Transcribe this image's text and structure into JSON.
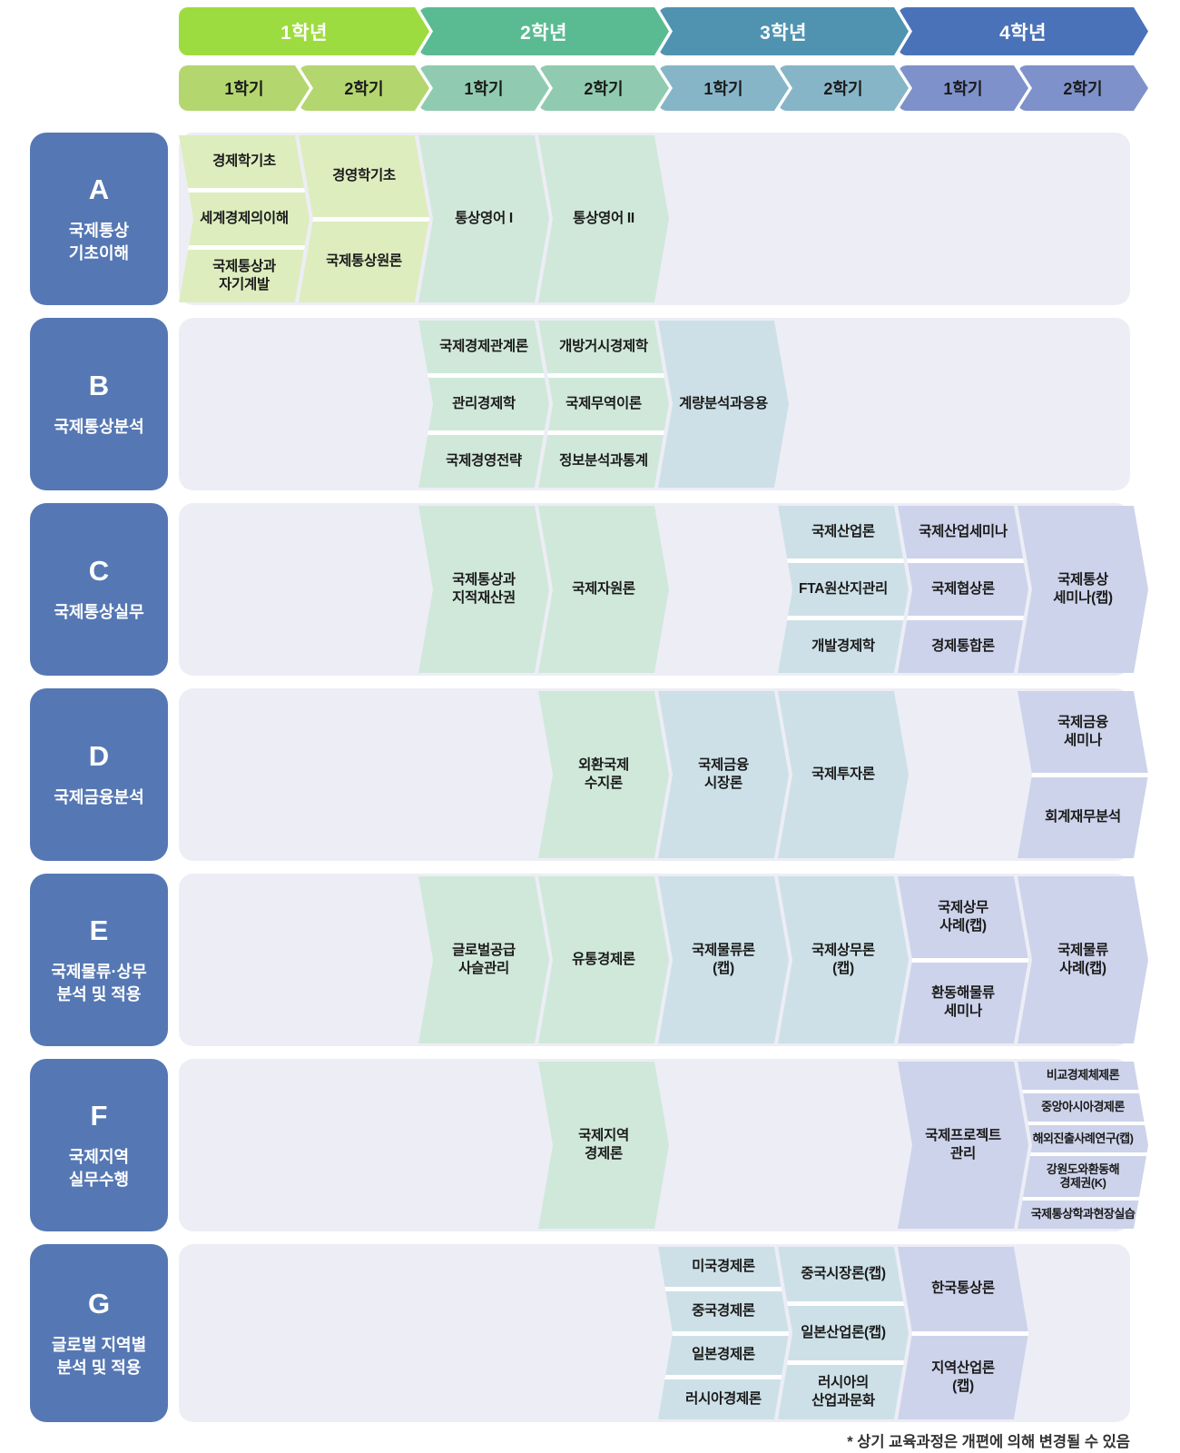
{
  "palette": {
    "text": "#1b1b1b",
    "rowBg": "#ededf6",
    "labelBlue": "#5578b4",
    "y1Header": "#9ddc40",
    "y1Sem": "#b4d66e",
    "y1Course": "#ddedbe",
    "y2Header": "#5abb92",
    "y2Sem": "#90cbb1",
    "y2Course": "#d0e8da",
    "y3Header": "#4f93b0",
    "y3Sem": "#87b5c8",
    "y3Course": "#cde0e7",
    "y4Header": "#4a72b8",
    "y4Sem": "#7e91ca",
    "y4Course": "#cdd3ea"
  },
  "header": {
    "years": [
      "1학년",
      "2학년",
      "3학년",
      "4학년"
    ],
    "semesters": [
      "1학기",
      "2학기",
      "1학기",
      "2학기",
      "1학기",
      "2학기",
      "1학기",
      "2학기"
    ]
  },
  "rows": [
    {
      "letter": "A",
      "title": "국제통상\n기초이해",
      "columns": [
        {
          "items": [
            "경제학기초",
            "세계경제의이해",
            "국제통상과\n자기계발"
          ]
        },
        {
          "items": [
            "경영학기초",
            "국제통상원론"
          ]
        },
        {
          "items": [
            "통상영어 I"
          ]
        },
        {
          "items": [
            "통상영어 II"
          ]
        }
      ]
    },
    {
      "letter": "B",
      "title": "국제통상분석",
      "columns": [
        {
          "items": [
            "국제경제관계론",
            "관리경제학",
            "국제경영전략"
          ]
        },
        {
          "items": [
            "개방거시경제학",
            "국제무역이론",
            "정보분석과통계"
          ]
        },
        {
          "items": [
            "계량분석과응용"
          ]
        }
      ]
    },
    {
      "letter": "C",
      "title": "국제통상실무",
      "columns": [
        {
          "items": [
            "국제통상과\n지적재산권"
          ]
        },
        {
          "items": [
            "국제자원론"
          ]
        },
        {
          "items": [
            "국제산업론",
            "FTA원산지관리",
            "개발경제학"
          ]
        },
        {
          "items": [
            "국제산업세미나",
            "국제협상론",
            "경제통합론"
          ]
        },
        {
          "items": [
            "국제통상\n세미나(캡)"
          ]
        }
      ]
    },
    {
      "letter": "D",
      "title": "국제금융분석",
      "columns": [
        {
          "items": [
            "외환국제\n수지론"
          ]
        },
        {
          "items": [
            "국제금융\n시장론"
          ]
        },
        {
          "items": [
            "국제투자론"
          ]
        },
        {
          "items": [
            "국제금융\n세미나",
            "회계재무분석"
          ]
        }
      ]
    },
    {
      "letter": "E",
      "title": "국제물류·상무\n분석 및 적용",
      "columns": [
        {
          "items": [
            "글로벌공급\n사슬관리"
          ]
        },
        {
          "items": [
            "유통경제론"
          ]
        },
        {
          "items": [
            "국제물류론\n(캡)"
          ]
        },
        {
          "items": [
            "국제상무론\n(캡)"
          ]
        },
        {
          "items": [
            "국제상무\n사례(캡)",
            "환동해물류\n세미나"
          ]
        },
        {
          "items": [
            "국제물류\n사례(캡)"
          ]
        }
      ]
    },
    {
      "letter": "F",
      "title": "국제지역\n실무수행",
      "columns": [
        {
          "items": [
            "국제지역\n경제론"
          ]
        },
        {
          "items": [
            "국제프로젝트\n관리"
          ]
        },
        {
          "items": [
            "비교경제체제론",
            "중앙아시아경제론",
            "해외진출사례연구(캡)",
            "강원도와환동해\n경제권(K)",
            "국제통상학과현장실습"
          ]
        }
      ]
    },
    {
      "letter": "G",
      "title": "글로벌 지역별\n분석 및 적용",
      "columns": [
        {
          "items": [
            "미국경제론",
            "중국경제론",
            "일본경제론",
            "러시아경제론"
          ]
        },
        {
          "items": [
            "중국시장론(캡)",
            "일본산업론(캡)",
            "러시아의\n산업과문화"
          ]
        },
        {
          "items": [
            "한국통상론",
            "지역산업론\n(캡)"
          ]
        }
      ]
    }
  ],
  "footnote": "* 상기 교육과정은 개편에 의해 변경될 수 있음"
}
